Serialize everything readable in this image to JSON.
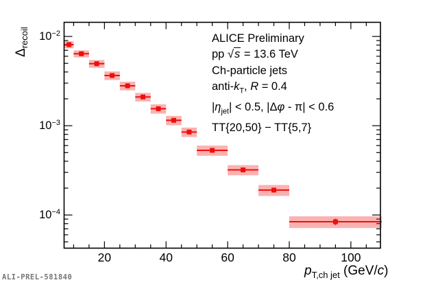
{
  "watermark": "ALI-PREL-581840",
  "colors": {
    "marker": "#ee0e0c",
    "stat_line": "#ee0e0c",
    "sys_box": "rgba(238,14,12,0.32)",
    "axis": "#000000",
    "watermark": "#757575"
  },
  "legend": {
    "lines": [
      [
        {
          "t": "ALICE Preliminary"
        }
      ],
      [
        {
          "t": "pp  "
        },
        {
          "t": "√"
        },
        {
          "t": "s",
          "s": "rad"
        },
        {
          "t": " = 13.6 TeV"
        }
      ],
      [
        {
          "t": "Ch-particle jets"
        }
      ],
      [
        {
          "t": "anti-"
        },
        {
          "t": "k",
          "s": "i"
        },
        {
          "t": "T",
          "s": "sub"
        },
        {
          "t": ", "
        },
        {
          "t": "R",
          "s": "i"
        },
        {
          "t": " = 0.4"
        }
      ],
      [
        {
          "t": "|"
        },
        {
          "t": "η",
          "s": "i"
        },
        {
          "t": "jet",
          "s": "sub"
        },
        {
          "t": "| < 0.5, |Δ"
        },
        {
          "t": "φ",
          "s": "i"
        },
        {
          "t": " - π| < 0.6"
        }
      ],
      [
        {
          "t": "TT{20,50} − TT{5,7}"
        }
      ]
    ]
  },
  "chart_data": {
    "type": "scatter",
    "title": "",
    "xlabel": "p_T,ch jet (GeV/c)",
    "ylabel": "Delta_recoil",
    "x_scale": "linear",
    "y_scale": "log",
    "xlim": [
      6.9,
      109.6
    ],
    "ylim": [
      4.25e-05,
      0.0144
    ],
    "x_major_ticks": [
      20,
      40,
      60,
      80,
      100
    ],
    "x_minor_step": 5,
    "y_major_ticks": [
      0.01,
      0.001,
      0.0001
    ],
    "y_tick_labels": [
      {
        "base": "10",
        "exp": "−2",
        "value": 0.01
      },
      {
        "base": "10",
        "exp": "−3",
        "value": 0.001
      },
      {
        "base": "10",
        "exp": "−4",
        "value": 0.0001
      }
    ],
    "x_title_segments": [
      {
        "t": "p",
        "s": "i"
      },
      {
        "t": "T,ch jet",
        "s": "sub"
      },
      {
        "t": " (GeV/",
        "s": ""
      },
      {
        "t": "c",
        "s": "i"
      },
      {
        "t": ")",
        "s": ""
      }
    ],
    "y_title_segments": [
      {
        "t": "Δ",
        "s": ""
      },
      {
        "t": "recoil",
        "s": "sub"
      }
    ],
    "grid": false,
    "legend_position": "top-right-inside",
    "series": [
      {
        "name": "Delta_recoil, pp 13.6 TeV, TT{20,50} − TT{5,7}",
        "bin_edges_gevc": [
          7,
          10,
          15,
          20,
          25,
          30,
          35,
          40,
          45,
          50,
          60,
          70,
          80,
          110
        ],
        "bin_centers_gevc": [
          8.5,
          12.5,
          17.5,
          22.5,
          27.5,
          32.5,
          37.5,
          42.5,
          47.5,
          55,
          65,
          75,
          95
        ],
        "y": [
          0.0081,
          0.0064,
          0.00495,
          0.00365,
          0.0028,
          0.0021,
          0.00155,
          0.00115,
          0.00085,
          0.00053,
          0.00032,
          0.00019,
          8.4e-05
        ],
        "sys_rel": [
          0.09,
          0.09,
          0.1,
          0.11,
          0.11,
          0.11,
          0.12,
          0.12,
          0.12,
          0.13,
          0.13,
          0.14,
          0.15
        ],
        "stat_rel": [
          0.02,
          0.02,
          0.02,
          0.025,
          0.025,
          0.03,
          0.03,
          0.03,
          0.035,
          0.04,
          0.05,
          0.06,
          0.08
        ],
        "marker": "filled-square",
        "marker_color": "#ee0e0c"
      }
    ],
    "annotations": [
      "ALICE Preliminary",
      "pp √s = 13.6 TeV",
      "Ch-particle jets",
      "anti-kT, R = 0.4",
      "|η_jet| < 0.5, |Δφ - π| < 0.6",
      "TT{20,50} − TT{5,7}"
    ]
  }
}
